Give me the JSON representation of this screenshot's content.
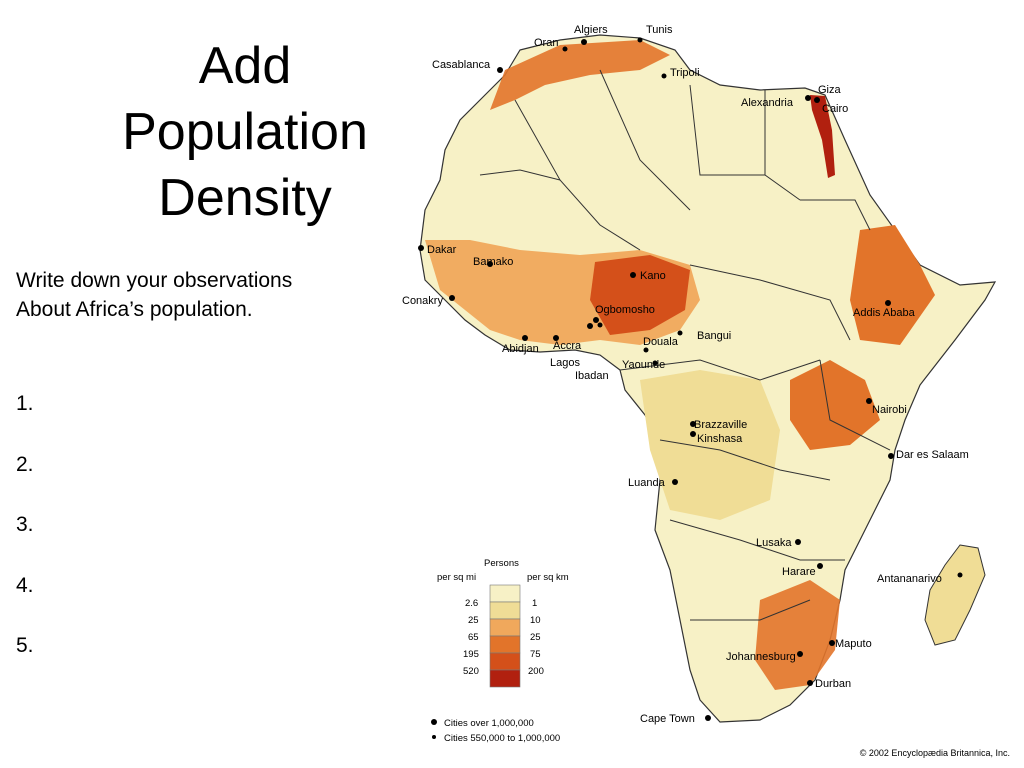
{
  "title": [
    "Add",
    "Population",
    "Density"
  ],
  "prompt": [
    "Write down your observations",
    "About Africa’s population."
  ],
  "list": [
    "1.",
    "2.",
    "3.",
    "4.",
    "5."
  ],
  "colors": {
    "lowest": "#f7f1c6",
    "low": "#f0dd96",
    "mid": "#f0a85c",
    "high": "#e2742a",
    "very_high": "#d4501a",
    "highest": "#b1200f",
    "border": "#333333"
  },
  "cities": [
    "Algiers",
    "Tunis",
    "Oran",
    "Casablanca",
    "Tripoli",
    "Giza",
    "Alexandria",
    "Cairo",
    "Dakar",
    "Bamako",
    "Kano",
    "Conakry",
    "Ogbomosho",
    "Addis Ababa",
    "Bangui",
    "Accra",
    "Douala",
    "Abidjan",
    "Lagos",
    "Yaounde",
    "Ibadan",
    "Nairobi",
    "Brazzaville",
    "Kinshasa",
    "Dar es Salaam",
    "Luanda",
    "Lusaka",
    "Harare",
    "Antananarivo",
    "Maputo",
    "Johannesburg",
    "Durban",
    "Cape Town"
  ],
  "legend": {
    "title": "Persons",
    "left_header": "per sq mi",
    "right_header": "per sq km",
    "left_values": [
      "2.6",
      "25",
      "65",
      "195",
      "520"
    ],
    "right_values": [
      "1",
      "10",
      "25",
      "75",
      "200"
    ],
    "markers": [
      "Cities over 1,000,000",
      "Cities 550,000 to 1,000,000"
    ]
  },
  "copyright": "© 2002 Encyclopædia Britannica, Inc."
}
